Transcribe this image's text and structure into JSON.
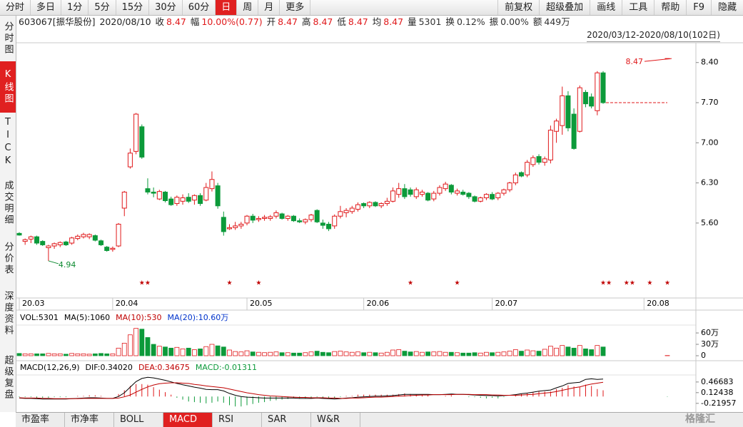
{
  "toolbar": {
    "tabs": [
      "分时",
      "多日",
      "1分",
      "5分",
      "15分",
      "30分",
      "60分",
      "日",
      "周",
      "月",
      "更多"
    ],
    "active": 7,
    "tools": [
      "前复权",
      "超级叠加",
      "画线",
      "工具",
      "帮助",
      "F9",
      "隐藏"
    ]
  },
  "info": {
    "code": "603067[振华股份]",
    "date": "2020/08/10",
    "fields": [
      {
        "label": "收",
        "value": "8.47",
        "color": "#e0191b"
      },
      {
        "label": "幅",
        "value": "10.00%(0.77)",
        "color": "#e0191b"
      },
      {
        "label": "开",
        "value": "8.47",
        "color": "#e0191b"
      },
      {
        "label": "高",
        "value": "8.47",
        "color": "#e0191b"
      },
      {
        "label": "低",
        "value": "8.47",
        "color": "#e0191b"
      },
      {
        "label": "均",
        "value": "8.47",
        "color": "#e0191b"
      },
      {
        "label": "量",
        "value": "5301",
        "color": "#333333"
      },
      {
        "label": "换",
        "value": "0.12%",
        "color": "#333333"
      },
      {
        "label": "振",
        "value": "0.00%",
        "color": "#333333"
      },
      {
        "label": "额",
        "value": "449万",
        "color": "#333333"
      }
    ]
  },
  "range": "2020/03/12-2020/08/10(102日)",
  "sidebar": {
    "items": [
      "分时图",
      "K线图",
      "TICK",
      "成交明细",
      "分价表",
      "深度资料",
      "超级复盘"
    ],
    "active": 1
  },
  "chart_data": [
    {
      "type": "candlestick",
      "up_color": "#e0191b",
      "down_color": "#0c9a3a",
      "ylim": [
        4.33,
        8.72
      ],
      "yticks": [
        {
          "value": 8.4,
          "label": "8.40"
        },
        {
          "value": 7.7,
          "label": "7.70"
        },
        {
          "value": 7,
          "label": "7.00"
        },
        {
          "value": 6.3,
          "label": "6.30"
        },
        {
          "value": 5.6,
          "label": "5.60"
        }
      ],
      "xlabels": [
        {
          "index": 0,
          "label": "20.03"
        },
        {
          "index": 16,
          "label": "20.04"
        },
        {
          "index": 39,
          "label": "20.05"
        },
        {
          "index": 59,
          "label": "20.06"
        },
        {
          "index": 81,
          "label": "20.07"
        },
        {
          "index": 107,
          "label": "20.08"
        }
      ],
      "annotations": [
        {
          "label": "8.47",
          "index": 111,
          "value": 8.47,
          "color": "#e0191b"
        },
        {
          "label": "4.94",
          "index": 5,
          "value": 4.94,
          "color": "#0c8a30"
        }
      ],
      "markers": {
        "symbol": "★",
        "color": "#c00000",
        "at": [
          21,
          22,
          36,
          41,
          67,
          75,
          100,
          101,
          104,
          105,
          108,
          111
        ]
      },
      "ohlc": [
        [
          5.42,
          5.44,
          5.38,
          5.39
        ],
        [
          5.28,
          5.33,
          5.22,
          5.31
        ],
        [
          5.32,
          5.38,
          5.25,
          5.36
        ],
        [
          5.36,
          5.38,
          5.22,
          5.25
        ],
        [
          5.28,
          5.3,
          5.2,
          5.22
        ],
        [
          5.17,
          5.22,
          4.94,
          5.2
        ],
        [
          5.2,
          5.26,
          5.15,
          5.24
        ],
        [
          5.22,
          5.28,
          5.18,
          5.26
        ],
        [
          5.27,
          5.29,
          5.2,
          5.22
        ],
        [
          5.25,
          5.36,
          5.22,
          5.34
        ],
        [
          5.33,
          5.4,
          5.3,
          5.37
        ],
        [
          5.36,
          5.43,
          5.33,
          5.4
        ],
        [
          5.36,
          5.42,
          5.32,
          5.4
        ],
        [
          5.38,
          5.4,
          5.28,
          5.3
        ],
        [
          5.29,
          5.31,
          5.2,
          5.22
        ],
        [
          5.18,
          5.2,
          5.1,
          5.12
        ],
        [
          5.14,
          5.19,
          5.1,
          5.16
        ],
        [
          5.2,
          5.6,
          5.18,
          5.58
        ],
        [
          5.86,
          6.16,
          5.72,
          6.14
        ],
        [
          6.58,
          6.9,
          6.55,
          6.82
        ],
        [
          6.85,
          7.52,
          6.8,
          7.5
        ],
        [
          7.28,
          7.32,
          6.72,
          6.75
        ],
        [
          6.2,
          6.38,
          6.1,
          6.14
        ],
        [
          6.14,
          6.22,
          6.05,
          6.12
        ],
        [
          6.02,
          6.18,
          6.0,
          6.15
        ],
        [
          6.14,
          6.16,
          5.96,
          5.99
        ],
        [
          6.02,
          6.06,
          5.9,
          5.92
        ],
        [
          5.94,
          6.08,
          5.9,
          6.05
        ],
        [
          5.98,
          6.1,
          5.92,
          6.04
        ],
        [
          6.05,
          6.12,
          5.95,
          5.98
        ],
        [
          6.0,
          6.1,
          5.92,
          6.08
        ],
        [
          6.08,
          6.12,
          5.9,
          5.94
        ],
        [
          6.0,
          6.3,
          5.98,
          6.22
        ],
        [
          6.2,
          6.5,
          6.15,
          6.36
        ],
        [
          6.25,
          6.3,
          5.85,
          5.9
        ],
        [
          5.7,
          5.8,
          5.38,
          5.45
        ],
        [
          5.5,
          5.58,
          5.48,
          5.52
        ],
        [
          5.52,
          5.62,
          5.48,
          5.55
        ],
        [
          5.55,
          5.62,
          5.5,
          5.58
        ],
        [
          5.6,
          5.74,
          5.56,
          5.72
        ],
        [
          5.72,
          5.76,
          5.6,
          5.65
        ],
        [
          5.66,
          5.72,
          5.62,
          5.68
        ],
        [
          5.68,
          5.74,
          5.64,
          5.7
        ],
        [
          5.68,
          5.74,
          5.64,
          5.71
        ],
        [
          5.72,
          5.82,
          5.68,
          5.78
        ],
        [
          5.76,
          5.78,
          5.66,
          5.68
        ],
        [
          5.68,
          5.74,
          5.64,
          5.72
        ],
        [
          5.72,
          5.74,
          5.62,
          5.64
        ],
        [
          5.64,
          5.68,
          5.6,
          5.62
        ],
        [
          5.62,
          5.68,
          5.58,
          5.66
        ],
        [
          5.66,
          5.76,
          5.62,
          5.74
        ],
        [
          5.82,
          5.84,
          5.6,
          5.62
        ],
        [
          5.6,
          5.66,
          5.5,
          5.56
        ],
        [
          5.58,
          5.62,
          5.46,
          5.5
        ],
        [
          5.55,
          5.75,
          5.5,
          5.72
        ],
        [
          5.72,
          5.9,
          5.68,
          5.8
        ],
        [
          5.78,
          5.86,
          5.7,
          5.82
        ],
        [
          5.8,
          5.9,
          5.76,
          5.86
        ],
        [
          5.84,
          5.96,
          5.8,
          5.92
        ],
        [
          5.94,
          5.96,
          5.86,
          5.9
        ],
        [
          5.9,
          5.98,
          5.86,
          5.96
        ],
        [
          5.96,
          5.98,
          5.88,
          5.9
        ],
        [
          5.9,
          5.96,
          5.86,
          5.94
        ],
        [
          5.94,
          6.04,
          5.9,
          5.98
        ],
        [
          5.98,
          6.22,
          5.96,
          6.16
        ],
        [
          6.1,
          6.3,
          6.04,
          6.2
        ],
        [
          6.2,
          6.28,
          6.02,
          6.06
        ],
        [
          6.18,
          6.22,
          6.06,
          6.1
        ],
        [
          6.06,
          6.22,
          6.02,
          6.18
        ],
        [
          6.1,
          6.18,
          6.06,
          6.14
        ],
        [
          6.12,
          6.14,
          5.98,
          6.0
        ],
        [
          6.02,
          6.16,
          5.98,
          6.12
        ],
        [
          6.12,
          6.26,
          6.08,
          6.22
        ],
        [
          6.2,
          6.32,
          6.16,
          6.28
        ],
        [
          6.26,
          6.28,
          6.1,
          6.14
        ],
        [
          6.12,
          6.2,
          6.08,
          6.16
        ],
        [
          6.14,
          6.18,
          6.08,
          6.1
        ],
        [
          6.12,
          6.14,
          6.02,
          6.06
        ],
        [
          6.06,
          6.08,
          5.96,
          5.98
        ],
        [
          5.98,
          6.06,
          5.96,
          6.04
        ],
        [
          6.04,
          6.12,
          6.0,
          6.1
        ],
        [
          6.1,
          6.14,
          6.0,
          6.02
        ],
        [
          6.04,
          6.14,
          6.0,
          6.12
        ],
        [
          6.12,
          6.2,
          6.08,
          6.18
        ],
        [
          6.18,
          6.32,
          6.14,
          6.3
        ],
        [
          6.3,
          6.48,
          6.26,
          6.44
        ],
        [
          6.48,
          6.5,
          6.4,
          6.42
        ],
        [
          6.44,
          6.7,
          6.4,
          6.66
        ],
        [
          6.62,
          6.78,
          6.58,
          6.74
        ],
        [
          6.76,
          6.8,
          6.62,
          6.66
        ],
        [
          6.66,
          6.76,
          6.6,
          6.72
        ],
        [
          6.7,
          7.3,
          6.64,
          7.22
        ],
        [
          7.2,
          7.42,
          7.0,
          7.38
        ],
        [
          7.3,
          7.98,
          7.14,
          7.82
        ],
        [
          7.82,
          7.9,
          7.2,
          7.26
        ],
        [
          7.5,
          7.6,
          6.88,
          6.9
        ],
        [
          7.2,
          8.0,
          7.18,
          7.96
        ],
        [
          7.88,
          7.92,
          7.62,
          7.68
        ],
        [
          7.8,
          7.86,
          7.6,
          7.64
        ],
        [
          7.56,
          8.25,
          7.48,
          8.22
        ],
        [
          8.22,
          8.25,
          7.68,
          7.7
        ],
        null,
        null,
        null,
        null,
        null,
        null,
        null,
        null,
        null,
        null,
        [
          8.47,
          8.47,
          8.47,
          8.47
        ]
      ]
    },
    {
      "type": "volume",
      "header": [
        {
          "text": "VOL:5301",
          "color": "#000000"
        },
        {
          "text": "MA(5):1060",
          "color": "#000000"
        },
        {
          "text": "MA(10):530",
          "color": "#c00000"
        },
        {
          "text": "MA(20):10.60万",
          "color": "#0033cc"
        }
      ],
      "ylim": [
        0,
        770000
      ],
      "yticks": [
        {
          "value": 600000,
          "label": "60万"
        },
        {
          "value": 300000,
          "label": "30万"
        },
        0
      ],
      "values": [
        60000,
        50000,
        50000,
        50000,
        50000,
        60000,
        50000,
        50000,
        40000,
        60000,
        50000,
        50000,
        40000,
        50000,
        60000,
        50000,
        50000,
        200000,
        330000,
        550000,
        720000,
        700000,
        480000,
        300000,
        250000,
        230000,
        200000,
        220000,
        180000,
        200000,
        160000,
        180000,
        240000,
        300000,
        260000,
        230000,
        150000,
        110000,
        100000,
        130000,
        100000,
        90000,
        80000,
        90000,
        100000,
        80000,
        80000,
        70000,
        70000,
        80000,
        100000,
        120000,
        90000,
        80000,
        110000,
        120000,
        100000,
        90000,
        100000,
        80000,
        90000,
        80000,
        70000,
        90000,
        150000,
        160000,
        120000,
        100000,
        110000,
        90000,
        100000,
        100000,
        110000,
        90000,
        90000,
        80000,
        70000,
        70000,
        80000,
        70000,
        90000,
        80000,
        90000,
        100000,
        120000,
        160000,
        120000,
        150000,
        130000,
        120000,
        170000,
        250000,
        200000,
        270000,
        230000,
        200000,
        270000,
        180000,
        160000,
        270000,
        230000,
        null,
        null,
        null,
        null,
        null,
        null,
        null,
        null,
        null,
        null,
        5301
      ]
    },
    {
      "type": "macd",
      "header": [
        {
          "text": "MACD(12,26,9)",
          "color": "#000000"
        },
        {
          "text": "DIF:0.34020",
          "color": "#000000"
        },
        {
          "text": "DEA:0.34675",
          "color": "#c00000"
        },
        {
          "text": "MACD:-0.01311",
          "color": "#0c9a3a"
        }
      ],
      "ylim": [
        -0.43,
        0.67
      ],
      "yticks": [
        0.46683,
        0.12438,
        -0.21957
      ],
      "up_color": "#e0191b",
      "down_color": "#0c9a3a",
      "dif_color": "#000000",
      "dea_color": "#c00000",
      "macd": [
        -0.02,
        -0.02,
        -0.02,
        -0.04,
        -0.04,
        -0.04,
        -0.02,
        -0.02,
        -0.02,
        0,
        0.02,
        0.02,
        0.04,
        0.04,
        0.02,
        0,
        0,
        0.08,
        0.2,
        0.34,
        0.4,
        0.4,
        0.38,
        0.3,
        0.22,
        0.14,
        0.06,
        -0.04,
        -0.1,
        -0.16,
        -0.18,
        -0.2,
        -0.22,
        -0.2,
        -0.16,
        -0.2,
        -0.28,
        -0.32,
        -0.32,
        -0.28,
        -0.24,
        -0.2,
        -0.18,
        -0.14,
        -0.12,
        -0.1,
        -0.08,
        -0.06,
        -0.06,
        -0.06,
        -0.04,
        -0.02,
        -0.04,
        -0.04,
        -0.06,
        -0.02,
        0.02,
        0.02,
        0.06,
        0.06,
        0.06,
        0.06,
        0.06,
        0.06,
        0.06,
        0.08,
        0.1,
        0.08,
        0.06,
        0.04,
        0.04,
        0,
        0,
        0.02,
        0.04,
        0,
        0,
        -0.02,
        -0.02,
        -0.04,
        -0.06,
        -0.04,
        -0.06,
        -0.02,
        0,
        0.04,
        0.08,
        0.1,
        0.14,
        0.16,
        0.16,
        0.16,
        0.24,
        0.28,
        0.36,
        0.32,
        0.3,
        0.38,
        0.34,
        0.24,
        0.2,
        null,
        null,
        null,
        null,
        null,
        null,
        null,
        null,
        null,
        null,
        -0.01311
      ],
      "dif": [
        -0.05,
        -0.06,
        -0.06,
        -0.07,
        -0.08,
        -0.08,
        -0.08,
        -0.08,
        -0.08,
        -0.07,
        -0.06,
        -0.05,
        -0.04,
        -0.04,
        -0.05,
        -0.06,
        -0.06,
        0,
        0.12,
        0.3,
        0.48,
        0.58,
        0.62,
        0.6,
        0.56,
        0.52,
        0.47,
        0.42,
        0.38,
        0.34,
        0.3,
        0.27,
        0.23,
        0.22,
        0.22,
        0.18,
        0.1,
        0.04,
        0,
        -0.02,
        -0.03,
        -0.04,
        -0.05,
        -0.05,
        -0.05,
        -0.05,
        -0.05,
        -0.05,
        -0.06,
        -0.06,
        -0.06,
        -0.05,
        -0.06,
        -0.07,
        -0.08,
        -0.07,
        -0.05,
        -0.04,
        -0.02,
        -0.01,
        0,
        0.01,
        0.01,
        0.02,
        0.03,
        0.05,
        0.07,
        0.07,
        0.07,
        0.07,
        0.07,
        0.06,
        0.06,
        0.07,
        0.08,
        0.07,
        0.07,
        0.06,
        0.05,
        0.04,
        0.03,
        0.03,
        0.02,
        0.03,
        0.04,
        0.06,
        0.09,
        0.11,
        0.14,
        0.17,
        0.19,
        0.21,
        0.28,
        0.34,
        0.42,
        0.44,
        0.46,
        0.55,
        0.57,
        0.55,
        0.56,
        null,
        null,
        null,
        null,
        null,
        null,
        null,
        null,
        null,
        null,
        0.3402
      ],
      "dea": [
        -0.04,
        -0.05,
        -0.05,
        -0.05,
        -0.06,
        -0.06,
        -0.07,
        -0.07,
        -0.07,
        -0.07,
        -0.07,
        -0.06,
        -0.06,
        -0.06,
        -0.06,
        -0.06,
        -0.06,
        -0.05,
        -0.01,
        0.05,
        0.14,
        0.23,
        0.31,
        0.37,
        0.41,
        0.43,
        0.44,
        0.44,
        0.43,
        0.42,
        0.39,
        0.37,
        0.34,
        0.32,
        0.3,
        0.28,
        0.24,
        0.2,
        0.16,
        0.12,
        0.09,
        0.06,
        0.04,
        0.02,
        0.01,
        0,
        -0.01,
        -0.02,
        -0.03,
        -0.03,
        -0.04,
        -0.04,
        -0.04,
        -0.05,
        -0.05,
        -0.06,
        -0.06,
        -0.05,
        -0.05,
        -0.04,
        -0.03,
        -0.02,
        -0.02,
        -0.01,
        0,
        0.01,
        0.02,
        0.03,
        0.04,
        0.05,
        0.05,
        0.06,
        0.06,
        0.06,
        0.06,
        0.07,
        0.07,
        0.07,
        0.06,
        0.06,
        0.06,
        0.05,
        0.05,
        0.04,
        0.04,
        0.04,
        0.05,
        0.06,
        0.07,
        0.09,
        0.11,
        0.13,
        0.16,
        0.2,
        0.24,
        0.28,
        0.31,
        0.36,
        0.4,
        0.43,
        0.46,
        null,
        null,
        null,
        null,
        null,
        null,
        null,
        null,
        null,
        null,
        0.34675
      ]
    }
  ],
  "bottom_tabs": {
    "items": [
      "市盈率",
      "市净率",
      "BOLL",
      "MACD",
      "RSI",
      "SAR",
      "W&R"
    ],
    "active": 3
  },
  "watermark": "格隆汇"
}
